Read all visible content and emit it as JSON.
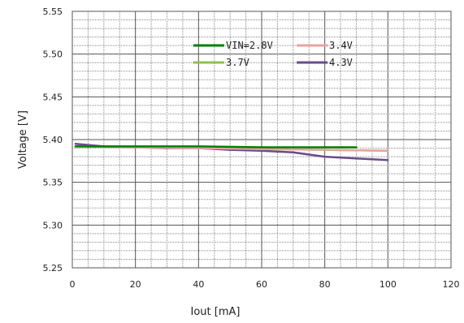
{
  "chart_data": {
    "type": "line",
    "xlabel": "Iout [mA]",
    "ylabel": "Voltage  [V]",
    "xlim": [
      0,
      120
    ],
    "ylim": [
      5.25,
      5.55
    ],
    "xticks": [
      "0",
      "20",
      "40",
      "60",
      "80",
      "100",
      "120"
    ],
    "yticks": [
      "5.25",
      "5.30",
      "5.35",
      "5.40",
      "5.45",
      "5.50",
      "5.55"
    ],
    "grid": true,
    "legend_position": "top-center",
    "series": [
      {
        "name": "VIN=2.8V",
        "color": "#008000",
        "x": [
          1,
          20,
          40,
          60,
          80,
          90
        ],
        "y": [
          5.392,
          5.392,
          5.392,
          5.391,
          5.391,
          5.391
        ]
      },
      {
        "name": "3.4V",
        "color": "#e8a3a0",
        "x": [
          1,
          20,
          40,
          60,
          80,
          100
        ],
        "y": [
          5.392,
          5.391,
          5.39,
          5.389,
          5.388,
          5.387
        ]
      },
      {
        "name": "3.7V",
        "color": "#8cc04c",
        "x": [
          1,
          20,
          40,
          60,
          80,
          100
        ],
        "y": [
          5.392,
          5.391,
          5.391,
          5.389,
          5.388,
          5.387
        ]
      },
      {
        "name": "4.3V",
        "color": "#6a4c8c",
        "x": [
          1,
          10,
          20,
          30,
          40,
          50,
          60,
          70,
          80,
          90,
          100
        ],
        "y": [
          5.395,
          5.392,
          5.391,
          5.39,
          5.39,
          5.388,
          5.387,
          5.385,
          5.38,
          5.378,
          5.376
        ]
      }
    ]
  }
}
